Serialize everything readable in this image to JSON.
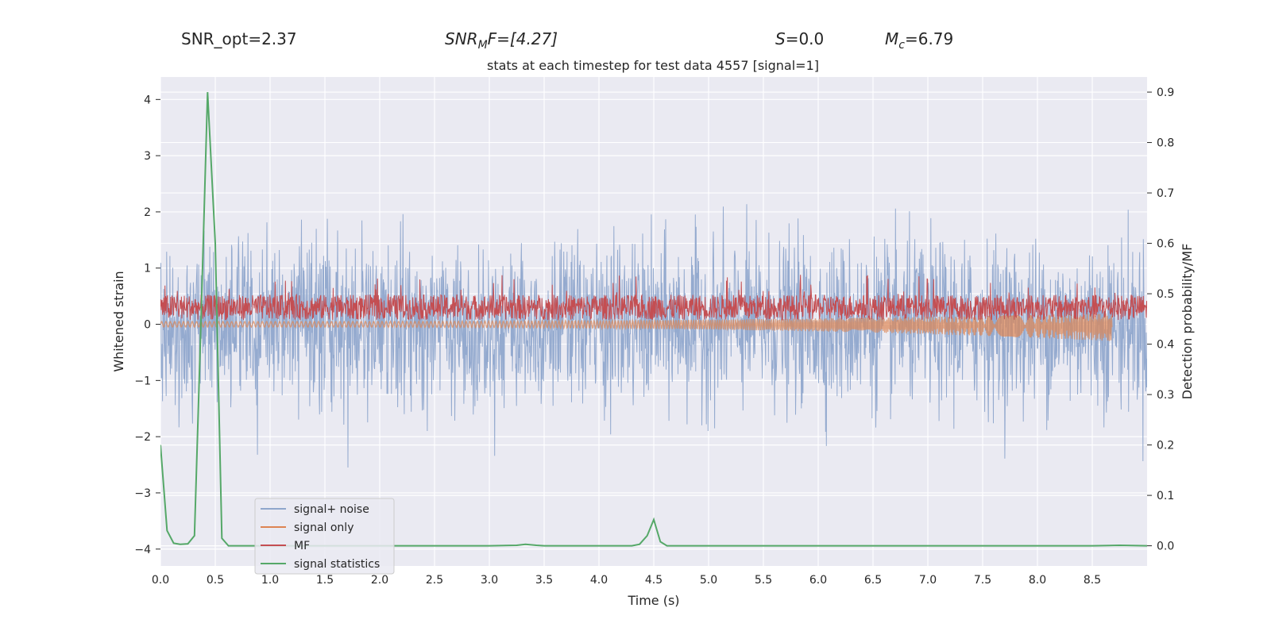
{
  "header": {
    "snr_opt": "SNR_opt=2.37",
    "snr_mf_base": "SNR",
    "snr_mf_sub": "M",
    "snr_mf_rest": "F=[4.27]",
    "s_italic": "S",
    "s_rest": "=0.0",
    "mc_italic": "M",
    "mc_sub": "c",
    "mc_rest": "=6.79"
  },
  "colors": {
    "background": "#eaeaf2",
    "grid": "#ffffff",
    "noise": "#8fa6cc",
    "signal_only": "#dd8452",
    "mf": "#c44e52",
    "stat": "#55a868"
  },
  "chart_data": {
    "type": "line",
    "title": "stats at each timestep for test data 4557 [signal=1]",
    "xlabel": "Time (s)",
    "ylabel": "Whitened strain",
    "y2label": "Detection probability/MF",
    "xlim": [
      0.0,
      9.0
    ],
    "ylim": [
      -4.3,
      4.4
    ],
    "y2lim": [
      -0.04,
      0.93
    ],
    "xticks": [
      "0.0",
      "0.5",
      "1.0",
      "1.5",
      "2.0",
      "2.5",
      "3.0",
      "3.5",
      "4.0",
      "4.5",
      "5.0",
      "5.5",
      "6.0",
      "6.5",
      "7.0",
      "7.5",
      "8.0",
      "8.5"
    ],
    "yticks": [
      "−4",
      "−3",
      "−2",
      "−1",
      "0",
      "1",
      "2",
      "3",
      "4"
    ],
    "y2ticks": [
      "0.0",
      "0.1",
      "0.2",
      "0.3",
      "0.4",
      "0.5",
      "0.6",
      "0.7",
      "0.8",
      "0.9"
    ],
    "legend_position": "lower-left",
    "series": [
      {
        "name": "signal+ noise",
        "axis": "left",
        "kind": "noise",
        "std": 0.72,
        "t_end": 9.0
      },
      {
        "name": "signal only",
        "axis": "left",
        "kind": "chirp",
        "t_end": 8.68,
        "amp_start": 0.05,
        "amp_end": 0.25
      },
      {
        "name": "MF",
        "axis": "right",
        "kind": "mf",
        "mean": 0.473,
        "band": 0.025,
        "t_end": 9.0
      },
      {
        "name": "signal statistics",
        "axis": "right",
        "kind": "line",
        "x": [
          0.0,
          0.06,
          0.12,
          0.18,
          0.25,
          0.31,
          0.37,
          0.43,
          0.5,
          0.56,
          0.62,
          0.75,
          1.0,
          2.0,
          3.0,
          3.25,
          3.33,
          3.43,
          3.5,
          4.0,
          4.3,
          4.37,
          4.44,
          4.5,
          4.56,
          4.62,
          4.75,
          5.0,
          6.0,
          7.0,
          8.0,
          8.5,
          8.75,
          9.0
        ],
        "y": [
          0.2,
          0.03,
          0.005,
          0.003,
          0.004,
          0.02,
          0.45,
          0.9,
          0.6,
          0.015,
          0.0,
          0.0,
          0.0,
          0.0,
          0.0,
          0.001,
          0.003,
          0.001,
          0.0,
          0.0,
          0.0,
          0.003,
          0.02,
          0.052,
          0.008,
          0.0,
          0.0,
          0.0,
          0.0,
          0.0,
          0.0,
          0.0,
          0.001,
          0.0
        ]
      }
    ]
  }
}
